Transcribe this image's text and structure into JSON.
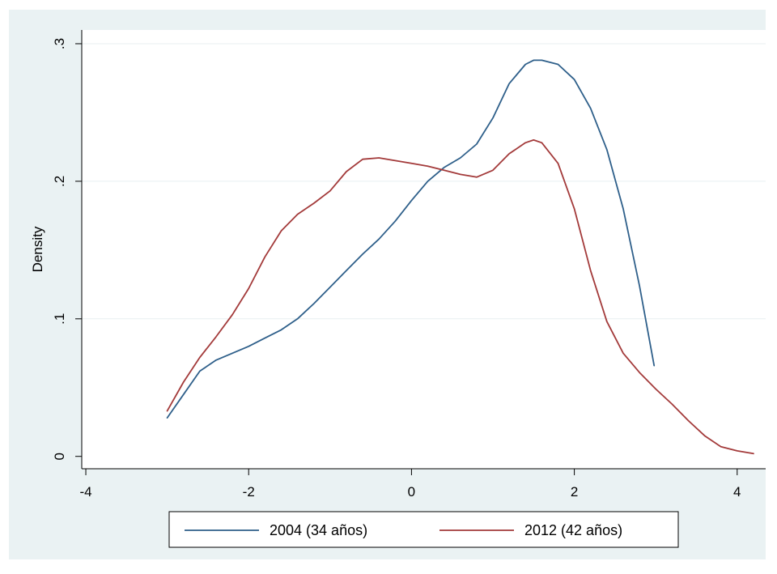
{
  "chart_data": {
    "type": "line",
    "title": "",
    "xlabel": "",
    "ylabel": "Density",
    "xlim": [
      -4.05,
      4.35
    ],
    "ylim": [
      -0.009,
      0.31
    ],
    "x_ticks": [
      -4,
      -2,
      0,
      2,
      4
    ],
    "x_tick_labels": [
      "-4",
      "-2",
      "0",
      "2",
      "4"
    ],
    "y_ticks": [
      0,
      0.1,
      0.2,
      0.3
    ],
    "y_tick_labels": [
      "0",
      ".1",
      ".2",
      ".3"
    ],
    "grid": "horizontal",
    "legend_position": "bottom",
    "series": [
      {
        "name": "2004 (34 años)",
        "color": "#2e5f8a",
        "x": [
          -3.0,
          -2.8,
          -2.6,
          -2.4,
          -2.2,
          -2.0,
          -1.8,
          -1.6,
          -1.4,
          -1.2,
          -1.0,
          -0.8,
          -0.6,
          -0.4,
          -0.2,
          0.0,
          0.2,
          0.4,
          0.6,
          0.8,
          1.0,
          1.2,
          1.4,
          1.5,
          1.6,
          1.8,
          2.0,
          2.2,
          2.4,
          2.6,
          2.8,
          2.98
        ],
        "y": [
          0.028,
          0.045,
          0.062,
          0.07,
          0.075,
          0.08,
          0.086,
          0.092,
          0.1,
          0.111,
          0.123,
          0.135,
          0.147,
          0.158,
          0.171,
          0.186,
          0.2,
          0.21,
          0.217,
          0.227,
          0.246,
          0.271,
          0.285,
          0.288,
          0.288,
          0.285,
          0.274,
          0.253,
          0.223,
          0.18,
          0.124,
          0.066
        ]
      },
      {
        "name": "2012 (42 años)",
        "color": "#a33a3a",
        "x": [
          -3.0,
          -2.8,
          -2.6,
          -2.4,
          -2.2,
          -2.0,
          -1.8,
          -1.6,
          -1.4,
          -1.2,
          -1.0,
          -0.8,
          -0.6,
          -0.4,
          -0.2,
          0.0,
          0.2,
          0.4,
          0.6,
          0.8,
          1.0,
          1.2,
          1.4,
          1.5,
          1.6,
          1.8,
          2.0,
          2.2,
          2.4,
          2.6,
          2.8,
          3.0,
          3.2,
          3.4,
          3.6,
          3.8,
          4.0,
          4.2
        ],
        "y": [
          0.033,
          0.054,
          0.072,
          0.087,
          0.103,
          0.122,
          0.145,
          0.164,
          0.176,
          0.184,
          0.193,
          0.207,
          0.216,
          0.217,
          0.215,
          0.213,
          0.211,
          0.208,
          0.205,
          0.203,
          0.208,
          0.22,
          0.228,
          0.23,
          0.228,
          0.213,
          0.18,
          0.135,
          0.098,
          0.075,
          0.061,
          0.049,
          0.038,
          0.026,
          0.015,
          0.007,
          0.004,
          0.002
        ]
      }
    ]
  }
}
